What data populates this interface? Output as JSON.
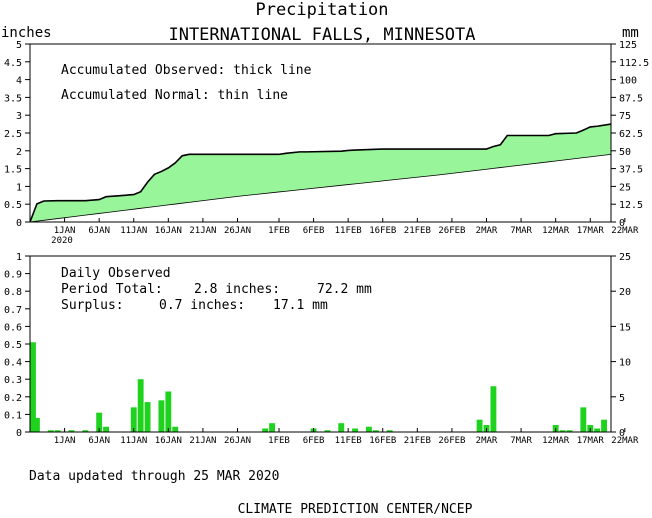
{
  "header": {
    "title": "Precipitation",
    "subtitle": "INTERNATIONAL FALLS, MINNESOTA",
    "left_unit": "inches",
    "right_unit": "mm"
  },
  "footer": {
    "updated": "Data updated through 25 MAR 2020",
    "credit": "CLIMATE PREDICTION CENTER/NCEP"
  },
  "colors": {
    "accumulated_fill": "#99f599",
    "daily_bar": "#1ed21e"
  },
  "chart_data": [
    {
      "type": "area",
      "x_unit": "day of year 2020",
      "x_range": [
        1,
        85
      ],
      "x_ticks": [
        {
          "day": 6,
          "label": "1JAN"
        },
        {
          "day": 11,
          "label": "6JAN"
        },
        {
          "day": 16,
          "label": "11JAN"
        },
        {
          "day": 21,
          "label": "16JAN"
        },
        {
          "day": 26,
          "label": "21JAN"
        },
        {
          "day": 31,
          "label": "26JAN"
        },
        {
          "day": 37,
          "label": "1FEB"
        },
        {
          "day": 42,
          "label": "6FEB"
        },
        {
          "day": 47,
          "label": "11FEB"
        },
        {
          "day": 52,
          "label": "16FEB"
        },
        {
          "day": 57,
          "label": "21FEB"
        },
        {
          "day": 62,
          "label": "26FEB"
        },
        {
          "day": 67,
          "label": "2MAR"
        },
        {
          "day": 72,
          "label": "7MAR"
        },
        {
          "day": 77,
          "label": "12MAR"
        },
        {
          "day": 82,
          "label": "17MAR"
        },
        {
          "day": 87,
          "label": "22MAR"
        }
      ],
      "year_label": "2020",
      "ylim": [
        0,
        5
      ],
      "y_ticks": [
        0,
        0.5,
        1,
        1.5,
        2,
        2.5,
        3,
        3.5,
        4,
        4.5,
        5
      ],
      "y_tick_labels": [
        "0",
        "0.5",
        "1",
        "1.5",
        "2",
        "2.5",
        "3",
        "3.5",
        "4",
        "4.5",
        "5"
      ],
      "ylim_mm": [
        0,
        125
      ],
      "y2_ticks": [
        0,
        12.5,
        25,
        37.5,
        50,
        62.5,
        75,
        87.5,
        100,
        112.5,
        125
      ],
      "y2_tick_labels": [
        "0",
        "12.5",
        "25",
        "37.5",
        "50",
        "62.5",
        "75",
        "87.5",
        "100",
        "112.5",
        "125"
      ],
      "annotations": [
        "Accumulated Observed: thick line",
        "Accumulated Normal: thin line"
      ],
      "series": [
        {
          "style": "thick",
          "x": [
            1,
            2,
            3,
            5,
            7,
            9,
            11,
            12,
            14,
            16,
            17,
            18,
            19,
            20,
            21,
            22,
            23,
            24,
            25,
            37,
            38,
            40,
            41,
            46,
            47,
            48,
            52,
            67,
            68,
            69,
            70,
            76,
            77,
            80,
            81,
            82,
            83,
            85,
            86,
            90
          ],
          "y": [
            0,
            0.51,
            0.59,
            0.6,
            0.6,
            0.6,
            0.63,
            0.71,
            0.74,
            0.77,
            0.85,
            1.12,
            1.34,
            1.42,
            1.52,
            1.66,
            1.86,
            1.9,
            1.9,
            1.9,
            1.93,
            1.97,
            1.97,
            1.99,
            2.01,
            2.02,
            2.05,
            2.05,
            2.12,
            2.17,
            2.43,
            2.43,
            2.48,
            2.5,
            2.58,
            2.67,
            2.69,
            2.75,
            2.83,
            2.84
          ]
        },
        {
          "style": "thin",
          "x": [
            1,
            31,
            60,
            85,
            90
          ],
          "y": [
            0,
            0.72,
            1.32,
            1.9,
            2.11
          ]
        }
      ]
    },
    {
      "type": "bar",
      "ylim": [
        0,
        1
      ],
      "y_ticks": [
        0,
        0.1,
        0.2,
        0.3,
        0.4,
        0.5,
        0.6,
        0.7,
        0.8,
        0.9,
        1
      ],
      "y_tick_labels": [
        "0",
        "0.1",
        "0.2",
        "0.3",
        "0.4",
        "0.5",
        "0.6",
        "0.7",
        "0.8",
        "0.9",
        "1"
      ],
      "ylim_mm": [
        0,
        25
      ],
      "y2_ticks": [
        0,
        5,
        10,
        15,
        20,
        25
      ],
      "y2_tick_labels": [
        "0",
        "5",
        "10",
        "15",
        "20",
        "25"
      ],
      "summary": {
        "heading": "Daily Observed",
        "period_label": "Period Total:",
        "period_inches": "2.8 inches:",
        "period_mm": "72.2 mm",
        "surplus_label": "Surplus:",
        "surplus_inches": "0.7 inches:",
        "surplus_mm": "17.1 mm"
      },
      "days": [
        1,
        2,
        4,
        5,
        7,
        9,
        11,
        12,
        16,
        17,
        18,
        20,
        21,
        22,
        35,
        36,
        42,
        44,
        46,
        48,
        50,
        51,
        53,
        66,
        67,
        68,
        77,
        78,
        79,
        81,
        82,
        83,
        84,
        86,
        88
      ],
      "values": [
        0.51,
        0.08,
        0.01,
        0.01,
        0.01,
        0.01,
        0.11,
        0.03,
        0.14,
        0.3,
        0.17,
        0.18,
        0.23,
        0.03,
        0.02,
        0.05,
        0.02,
        0.01,
        0.05,
        0.02,
        0.03,
        0.01,
        0.01,
        0.07,
        0.04,
        0.26,
        0.04,
        0.01,
        0.01,
        0.14,
        0.04,
        0.02,
        0.07,
        0.08,
        0.02
      ]
    }
  ]
}
